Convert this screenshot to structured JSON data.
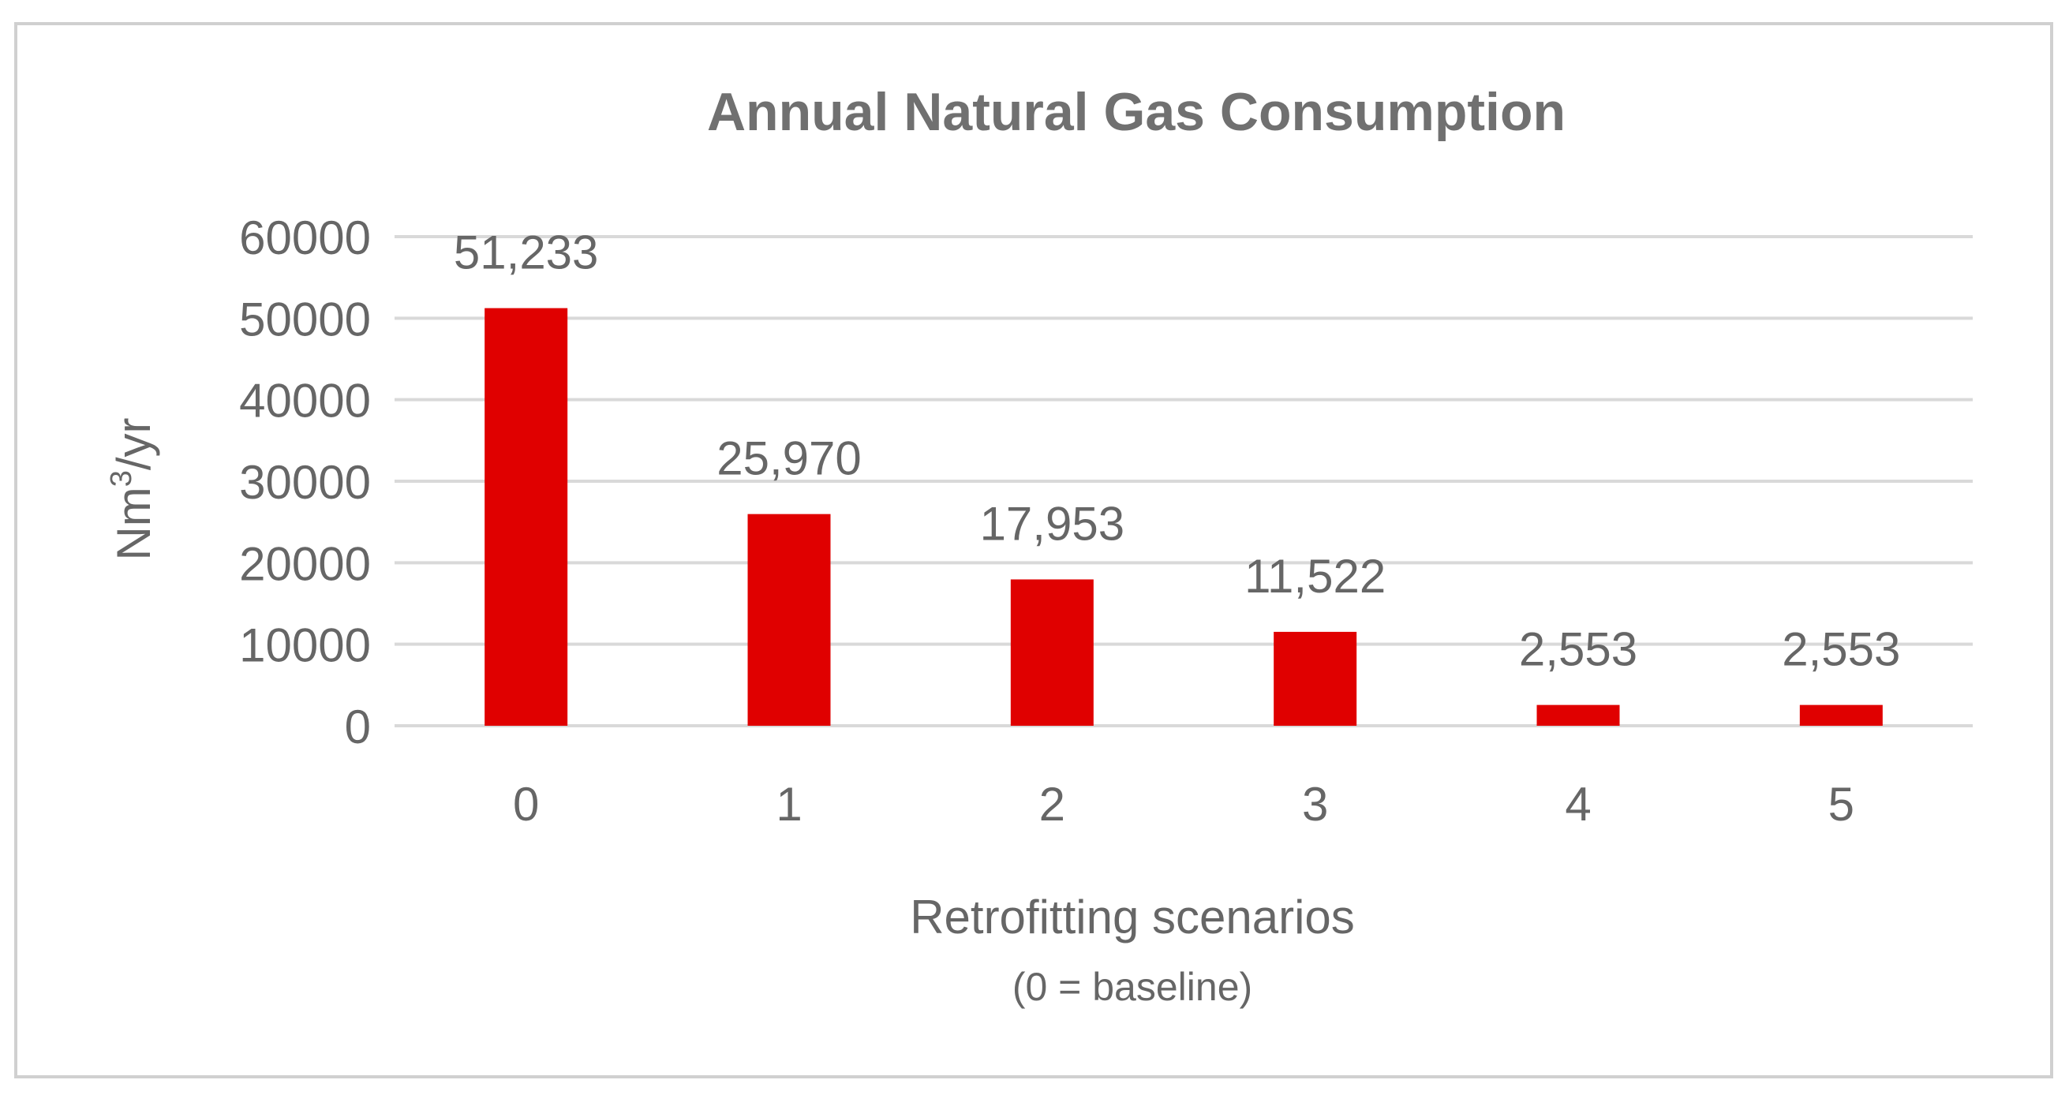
{
  "chart_data": {
    "type": "bar",
    "title": "Annual Natural Gas Consumption",
    "categories": [
      "0",
      "1",
      "2",
      "3",
      "4",
      "5"
    ],
    "values": [
      51233,
      25970,
      17953,
      11522,
      2553,
      2553
    ],
    "data_labels": [
      "51,233",
      "25,970",
      "17,953",
      "11,522",
      "2,553",
      "2,553"
    ],
    "ylabel_base": "Nm",
    "ylabel_sup": "3",
    "ylabel_tail": "/yr",
    "xlabel": "Retrofitting scenarios",
    "xlabel_sub": "(0 = baseline)",
    "ylim": [
      0,
      60000
    ],
    "yticks": [
      "0",
      "10000",
      "20000",
      "30000",
      "40000",
      "50000",
      "60000"
    ],
    "ytick_values": [
      0,
      10000,
      20000,
      30000,
      40000,
      50000,
      60000
    ],
    "grid": true,
    "legend": "none",
    "colors": {
      "bar": "#e00000",
      "text": "#666666",
      "title": "#707070",
      "grid": "#d9d9d9",
      "border": "#d0d0d0"
    }
  }
}
